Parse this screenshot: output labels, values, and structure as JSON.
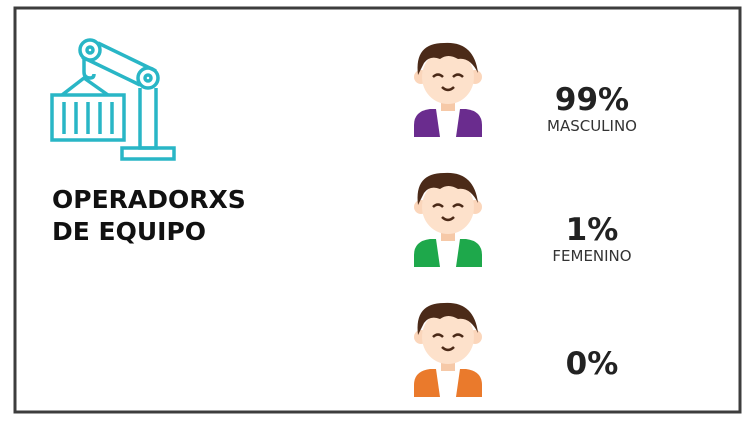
{
  "title": {
    "lines": [
      "OPERADORXS",
      "DE EQUIPO"
    ]
  },
  "items": [
    {
      "percent": "99%",
      "label": "MASCULINO",
      "shirt_color": "#6a2c8e"
    },
    {
      "percent": "1%",
      "label": "FEMENINO",
      "shirt_color": "#1ea84b"
    },
    {
      "percent": "0%",
      "shirt_color": "#ea7a2c"
    }
  ]
}
